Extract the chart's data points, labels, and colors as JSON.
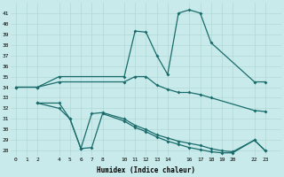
{
  "line1_x": [
    0,
    2,
    4,
    10,
    11,
    12,
    13,
    14,
    15,
    16,
    17,
    18,
    22,
    23
  ],
  "line1_y": [
    34,
    34,
    35,
    35,
    39.3,
    39.2,
    37,
    35.2,
    41,
    41.3,
    41,
    38.2,
    34.5,
    34.5
  ],
  "line2_x": [
    0,
    2,
    4,
    10,
    11,
    12,
    13,
    14,
    15,
    16,
    17,
    18,
    22,
    23
  ],
  "line2_y": [
    34,
    34,
    34.5,
    34.5,
    35.0,
    35.0,
    34.2,
    33.8,
    33.5,
    33.5,
    33.3,
    33.0,
    31.8,
    31.7
  ],
  "line3_x": [
    2,
    4,
    5,
    6,
    7,
    8,
    10,
    11,
    12,
    13,
    14,
    15,
    16,
    17,
    18,
    19,
    20,
    22,
    23
  ],
  "line3_y": [
    32.5,
    32.5,
    31.0,
    28.2,
    31.5,
    31.6,
    31.0,
    30.4,
    30.0,
    29.5,
    29.2,
    28.9,
    28.7,
    28.5,
    28.2,
    28.0,
    27.9,
    29.0,
    28.0
  ],
  "line4_x": [
    2,
    4,
    5,
    6,
    7,
    8,
    10,
    11,
    12,
    13,
    14,
    15,
    16,
    17,
    18,
    19,
    20,
    22,
    23
  ],
  "line4_y": [
    32.5,
    32.0,
    31.0,
    28.2,
    28.3,
    31.5,
    30.8,
    30.2,
    29.8,
    29.3,
    28.9,
    28.6,
    28.3,
    28.1,
    27.9,
    27.8,
    27.8,
    29.0,
    28.0
  ],
  "xlim": [
    -0.5,
    24.5
  ],
  "ylim": [
    27.5,
    42
  ],
  "yticks": [
    28,
    29,
    30,
    31,
    32,
    33,
    34,
    35,
    36,
    37,
    38,
    39,
    40,
    41
  ],
  "xtick_vals": [
    0,
    1,
    2,
    4,
    5,
    6,
    7,
    8,
    10,
    11,
    12,
    13,
    14,
    16,
    17,
    18,
    19,
    20,
    22,
    23
  ],
  "xlabel": "Humidex (Indice chaleur)",
  "line_color": "#1a6b6b",
  "bg_color": "#c8eaea",
  "grid_color": "#b0d8d8"
}
